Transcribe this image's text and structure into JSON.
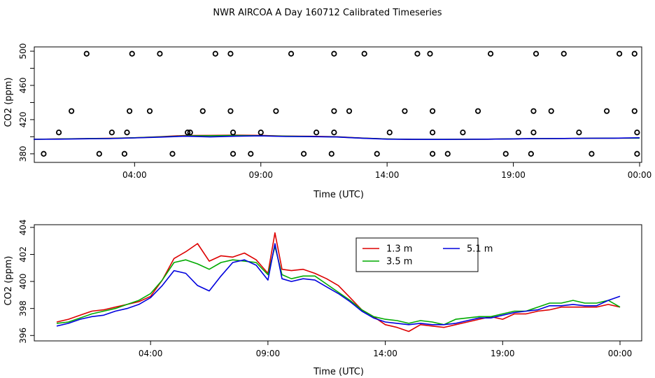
{
  "chart_data": [
    {
      "type": "scatter",
      "title": "NWR AIRCOA A  Day 160712  Calibrated Timeseries",
      "xlabel": "Time (UTC)",
      "ylabel": "CO2 (ppm)",
      "xlim": [
        0,
        24
      ],
      "ylim": [
        370,
        505
      ],
      "x_ticks": [
        4,
        9,
        14,
        19,
        24
      ],
      "x_tick_labels": [
        "04:00",
        "09:00",
        "14:00",
        "19:00",
        "00:00"
      ],
      "y_ticks": [
        380,
        420,
        460,
        500
      ],
      "y_tick_labels": [
        "380",
        "420",
        "460",
        "500"
      ],
      "y_minor_ticks": [
        400,
        440,
        480
      ],
      "grid": false,
      "legend": "none",
      "lines": [
        {
          "color": "#dd0000",
          "x": [
            0,
            1,
            2,
            3,
            4,
            5,
            6,
            7,
            8,
            9,
            10,
            11,
            12,
            13,
            14,
            15,
            16,
            17,
            18,
            19,
            20,
            21,
            22,
            23,
            24
          ],
          "y": [
            397,
            397.5,
            397.8,
            398.2,
            398.8,
            400,
            401.5,
            401.6,
            401.8,
            401.6,
            400.8,
            400.5,
            400,
            398.5,
            397.4,
            396.8,
            396.8,
            397,
            397.2,
            397.6,
            397.8,
            398,
            398.2,
            398.4,
            398.5
          ]
        },
        {
          "color": "#00aa00",
          "x": [
            0,
            1,
            2,
            3,
            4,
            5,
            6,
            7,
            8,
            9,
            10,
            11,
            12,
            13,
            14,
            15,
            16,
            17,
            18,
            19,
            20,
            21,
            22,
            23,
            24
          ],
          "y": [
            397,
            397.4,
            397.8,
            398,
            398.8,
            399.8,
            401,
            401.2,
            401.4,
            401.2,
            400.6,
            400.3,
            399.8,
            398.4,
            397.4,
            397,
            396.9,
            397,
            397.2,
            397.6,
            397.8,
            398,
            398.2,
            398.4,
            398.4
          ]
        },
        {
          "color": "#0000dd",
          "x": [
            0,
            1,
            2,
            3,
            4,
            5,
            6,
            7,
            8,
            9,
            10,
            11,
            12,
            13,
            14,
            15,
            16,
            17,
            18,
            19,
            20,
            21,
            22,
            23,
            24
          ],
          "y": [
            397,
            397.2,
            397.6,
            397.8,
            398.6,
            399.5,
            400.6,
            399.8,
            400.6,
            401,
            400.3,
            400.1,
            399.7,
            398.3,
            397.2,
            396.9,
            396.8,
            397,
            397.2,
            397.5,
            397.8,
            398,
            398.2,
            398.3,
            398.8
          ]
        }
      ],
      "points": [
        {
          "x": 0.4,
          "y": 380
        },
        {
          "x": 1.0,
          "y": 405
        },
        {
          "x": 1.5,
          "y": 430
        },
        {
          "x": 2.1,
          "y": 497
        },
        {
          "x": 2.6,
          "y": 380
        },
        {
          "x": 3.1,
          "y": 405
        },
        {
          "x": 3.6,
          "y": 380
        },
        {
          "x": 3.7,
          "y": 405
        },
        {
          "x": 3.8,
          "y": 430
        },
        {
          "x": 3.9,
          "y": 497
        },
        {
          "x": 4.6,
          "y": 430
        },
        {
          "x": 5.0,
          "y": 497
        },
        {
          "x": 5.5,
          "y": 380
        },
        {
          "x": 6.1,
          "y": 405
        },
        {
          "x": 6.2,
          "y": 405
        },
        {
          "x": 6.7,
          "y": 430
        },
        {
          "x": 7.2,
          "y": 497
        },
        {
          "x": 7.8,
          "y": 497
        },
        {
          "x": 7.8,
          "y": 430
        },
        {
          "x": 7.9,
          "y": 405
        },
        {
          "x": 7.9,
          "y": 380
        },
        {
          "x": 8.6,
          "y": 380
        },
        {
          "x": 9.0,
          "y": 405
        },
        {
          "x": 9.6,
          "y": 430
        },
        {
          "x": 10.2,
          "y": 497
        },
        {
          "x": 10.7,
          "y": 380
        },
        {
          "x": 11.2,
          "y": 405
        },
        {
          "x": 11.8,
          "y": 380
        },
        {
          "x": 11.9,
          "y": 405
        },
        {
          "x": 11.9,
          "y": 430
        },
        {
          "x": 11.9,
          "y": 497
        },
        {
          "x": 12.5,
          "y": 430
        },
        {
          "x": 13.1,
          "y": 497
        },
        {
          "x": 13.6,
          "y": 380
        },
        {
          "x": 14.1,
          "y": 405
        },
        {
          "x": 14.7,
          "y": 430
        },
        {
          "x": 15.2,
          "y": 497
        },
        {
          "x": 15.7,
          "y": 497
        },
        {
          "x": 15.8,
          "y": 430
        },
        {
          "x": 15.8,
          "y": 405
        },
        {
          "x": 15.8,
          "y": 380
        },
        {
          "x": 16.4,
          "y": 380
        },
        {
          "x": 17.0,
          "y": 405
        },
        {
          "x": 17.6,
          "y": 430
        },
        {
          "x": 18.1,
          "y": 497
        },
        {
          "x": 18.7,
          "y": 380
        },
        {
          "x": 19.2,
          "y": 405
        },
        {
          "x": 19.7,
          "y": 380
        },
        {
          "x": 19.8,
          "y": 405
        },
        {
          "x": 19.8,
          "y": 430
        },
        {
          "x": 19.9,
          "y": 497
        },
        {
          "x": 20.5,
          "y": 430
        },
        {
          "x": 21.0,
          "y": 497
        },
        {
          "x": 21.6,
          "y": 405
        },
        {
          "x": 22.1,
          "y": 380
        },
        {
          "x": 22.7,
          "y": 430
        },
        {
          "x": 23.2,
          "y": 497
        },
        {
          "x": 23.8,
          "y": 497
        },
        {
          "x": 23.8,
          "y": 430
        },
        {
          "x": 23.9,
          "y": 405
        },
        {
          "x": 23.9,
          "y": 380
        }
      ]
    },
    {
      "type": "line",
      "title": "",
      "xlabel": "Time (UTC)",
      "ylabel": "CO2 (ppm)",
      "xlim": [
        0,
        24
      ],
      "ylim": [
        395.6,
        404.2
      ],
      "x_ticks": [
        4,
        9,
        14,
        19,
        24
      ],
      "x_tick_labels": [
        "04:00",
        "09:00",
        "14:00",
        "19:00",
        "00:00"
      ],
      "y_ticks": [
        396,
        398,
        400,
        402,
        404
      ],
      "y_tick_labels": [
        "396",
        "398",
        "400",
        "402",
        "404"
      ],
      "grid": false,
      "legend": "top-center",
      "series": [
        {
          "name": "1.3 m",
          "color": "#dd0000",
          "x": [
            0,
            0.5,
            1,
            1.5,
            2,
            2.5,
            3,
            3.5,
            4,
            4.5,
            5,
            5.5,
            6,
            6.5,
            7,
            7.5,
            8,
            8.5,
            9,
            9.3,
            9.6,
            10,
            10.5,
            11,
            11.5,
            12,
            12.5,
            13,
            13.5,
            14,
            14.5,
            15,
            15.5,
            16,
            16.5,
            17,
            17.5,
            18,
            18.5,
            19,
            19.5,
            20,
            20.5,
            21,
            21.5,
            22,
            22.5,
            23,
            23.5,
            24
          ],
          "y": [
            397,
            397.2,
            397.5,
            397.8,
            397.9,
            398.1,
            398.3,
            398.5,
            398.9,
            400.1,
            401.7,
            402.2,
            402.8,
            401.5,
            401.9,
            401.8,
            402.1,
            401.6,
            400.6,
            403.6,
            400.9,
            400.8,
            400.9,
            400.6,
            400.2,
            399.7,
            398.8,
            397.9,
            397.4,
            396.8,
            396.6,
            396.3,
            396.8,
            396.7,
            396.6,
            396.8,
            397,
            397.2,
            397.4,
            397.2,
            397.6,
            397.6,
            397.8,
            397.9,
            398.1,
            398.1,
            398.1,
            398.1,
            398.3,
            398.1
          ]
        },
        {
          "name": "3.5 m",
          "color": "#00aa00",
          "x": [
            0,
            0.5,
            1,
            1.5,
            2,
            2.5,
            3,
            3.5,
            4,
            4.5,
            5,
            5.5,
            6,
            6.5,
            7,
            7.5,
            8,
            8.5,
            9,
            9.3,
            9.6,
            10,
            10.5,
            11,
            11.5,
            12,
            12.5,
            13,
            13.5,
            14,
            14.5,
            15,
            15.5,
            16,
            16.5,
            17,
            17.5,
            18,
            18.5,
            19,
            19.5,
            20,
            20.5,
            21,
            21.5,
            22,
            22.5,
            23,
            23.5,
            24
          ],
          "y": [
            396.9,
            397,
            397.3,
            397.6,
            397.8,
            398,
            398.3,
            398.6,
            399.1,
            400.1,
            401.4,
            401.6,
            401.3,
            400.9,
            401.4,
            401.6,
            401.5,
            401.4,
            400.5,
            402.6,
            400.5,
            400.2,
            400.4,
            400.4,
            399.8,
            399.2,
            398.6,
            397.9,
            397.4,
            397.2,
            397.1,
            396.9,
            397.1,
            397,
            396.8,
            397.2,
            397.3,
            397.4,
            397.4,
            397.6,
            397.8,
            397.8,
            398.1,
            398.4,
            398.4,
            398.6,
            398.4,
            398.4,
            398.6,
            398.1
          ]
        },
        {
          "name": "5.1 m",
          "color": "#0000dd",
          "x": [
            0,
            0.5,
            1,
            1.5,
            2,
            2.5,
            3,
            3.5,
            4,
            4.5,
            5,
            5.5,
            6,
            6.5,
            7,
            7.5,
            8,
            8.5,
            9,
            9.3,
            9.6,
            10,
            10.5,
            11,
            11.5,
            12,
            12.5,
            13,
            13.5,
            14,
            14.5,
            15,
            15.5,
            16,
            16.5,
            17,
            17.5,
            18,
            18.5,
            19,
            19.5,
            20,
            20.5,
            21,
            21.5,
            22,
            22.5,
            23,
            23.5,
            24
          ],
          "y": [
            396.7,
            396.9,
            397.2,
            397.4,
            397.5,
            397.8,
            398,
            398.3,
            398.8,
            399.7,
            400.8,
            400.6,
            399.7,
            399.3,
            400.4,
            401.4,
            401.6,
            401.2,
            400.1,
            402.8,
            400.2,
            400,
            400.2,
            400.1,
            399.6,
            399.1,
            398.5,
            397.8,
            397.3,
            397,
            396.9,
            396.8,
            396.9,
            396.8,
            396.8,
            396.9,
            397.1,
            397.3,
            397.3,
            397.5,
            397.7,
            397.8,
            397.9,
            398.2,
            398.2,
            398.3,
            398.2,
            398.2,
            398.6,
            398.9
          ]
        }
      ]
    }
  ]
}
